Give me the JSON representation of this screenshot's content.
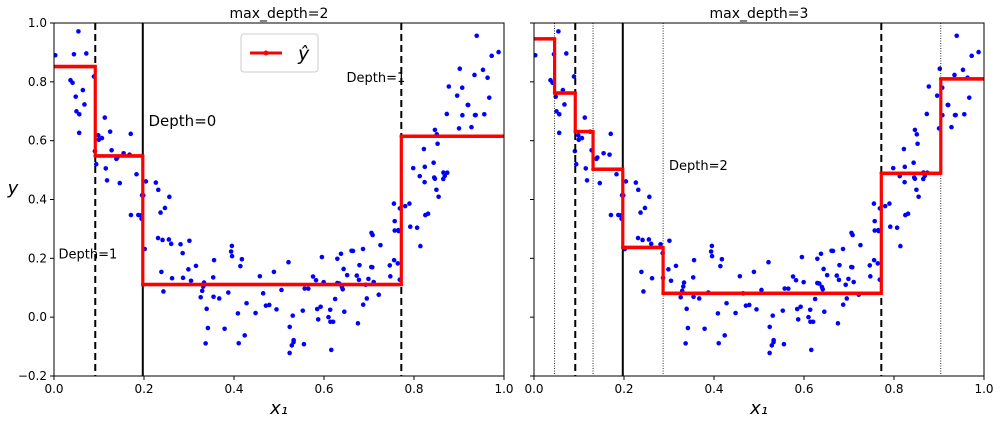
{
  "chart_data": [
    {
      "type": "scatter",
      "title": "max_depth=2",
      "xlabel": "x₁",
      "ylabel": "y",
      "xlim": [
        0.0,
        1.0
      ],
      "ylim": [
        -0.2,
        1.0
      ],
      "xticks": [
        "0.0",
        "0.2",
        "0.4",
        "0.6",
        "0.8",
        "1.0"
      ],
      "yticks": [
        "−0.2",
        "0.0",
        "0.2",
        "0.4",
        "0.6",
        "0.8",
        "1.0"
      ],
      "legend": {
        "label": "ŷ",
        "position": "top-center"
      },
      "splits": [
        {
          "x": 0.1973,
          "style": "solid"
        },
        {
          "x": 0.0917,
          "style": "dashed"
        },
        {
          "x": 0.7718,
          "style": "dashed"
        }
      ],
      "annotations": [
        {
          "text": "Depth=0",
          "x": 0.21,
          "y": 0.65
        },
        {
          "text": "Depth=1",
          "x": 0.01,
          "y": 0.2
        },
        {
          "text": "Depth=1",
          "x": 0.65,
          "y": 0.8
        }
      ],
      "prediction_steps": [
        {
          "x0": 0.0,
          "x1": 0.0917,
          "y": 0.852
        },
        {
          "x0": 0.0917,
          "x1": 0.1973,
          "y": 0.548
        },
        {
          "x0": 0.1973,
          "x1": 0.7718,
          "y": 0.111
        },
        {
          "x0": 0.7718,
          "x1": 1.0,
          "y": 0.615
        }
      ]
    },
    {
      "type": "scatter",
      "title": "max_depth=3",
      "xlabel": "x₁",
      "xlim": [
        0.0,
        1.0
      ],
      "ylim": [
        -0.2,
        1.0
      ],
      "xticks": [
        "0.0",
        "0.2",
        "0.4",
        "0.6",
        "0.8",
        "1.0"
      ],
      "splits": [
        {
          "x": 0.1973,
          "style": "solid"
        },
        {
          "x": 0.0917,
          "style": "dashed"
        },
        {
          "x": 0.7718,
          "style": "dashed"
        },
        {
          "x": 0.0458,
          "style": "dotted"
        },
        {
          "x": 0.1312,
          "style": "dotted"
        },
        {
          "x": 0.2869,
          "style": "dotted"
        },
        {
          "x": 0.904,
          "style": "dotted"
        }
      ],
      "annotations": [
        {
          "text": "Depth=2",
          "x": 0.3,
          "y": 0.5
        }
      ],
      "prediction_steps": [
        {
          "x0": 0.0,
          "x1": 0.0458,
          "y": 0.946
        },
        {
          "x0": 0.0458,
          "x1": 0.0917,
          "y": 0.762
        },
        {
          "x0": 0.0917,
          "x1": 0.1312,
          "y": 0.631
        },
        {
          "x0": 0.1312,
          "x1": 0.1973,
          "y": 0.503
        },
        {
          "x0": 0.1973,
          "x1": 0.2869,
          "y": 0.237
        },
        {
          "x0": 0.2869,
          "x1": 0.7718,
          "y": 0.081
        },
        {
          "x0": 0.7718,
          "x1": 0.904,
          "y": 0.489
        },
        {
          "x0": 0.904,
          "x1": 1.0,
          "y": 0.81
        }
      ]
    }
  ],
  "colors": {
    "points": "#0000ff",
    "prediction": "#ff0000",
    "axes": "#000000"
  }
}
